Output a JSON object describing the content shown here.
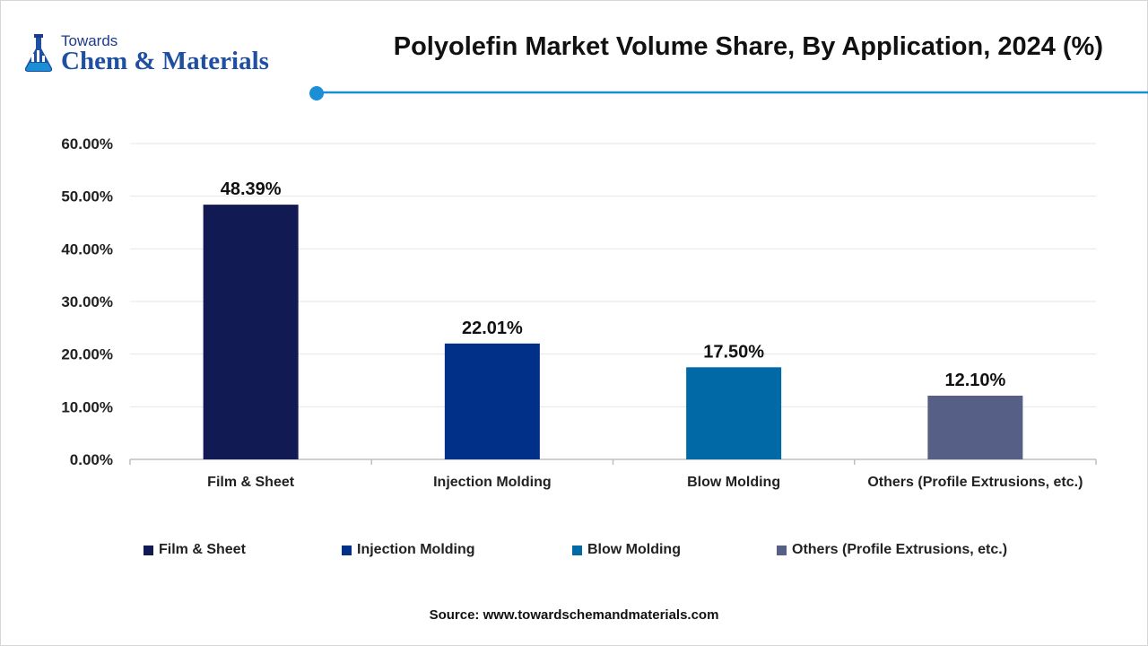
{
  "brand": {
    "line1": "Towards",
    "line2": "Chem & Materials"
  },
  "colors": {
    "accent": "#1a8fd6",
    "title_rule": "#1a8fd6",
    "grid": "#e6e6e6",
    "axis": "#bfbfbf"
  },
  "source": "Source: www.towardschemandmaterials.com",
  "chart_data": {
    "type": "bar",
    "title": "Polyolefin Market Volume Share, By Application, 2024 (%)",
    "xlabel": "",
    "ylabel": "",
    "categories": [
      "Film & Sheet",
      "Injection Molding",
      "Blow Molding",
      "Others (Profile Extrusions, etc.)"
    ],
    "values": [
      48.39,
      22.01,
      17.5,
      12.1
    ],
    "value_labels": [
      "48.39%",
      "22.01%",
      "17.50%",
      "12.10%"
    ],
    "bar_colors": [
      "#111a52",
      "#003087",
      "#0069a6",
      "#565f85"
    ],
    "ylim": [
      0,
      60
    ],
    "yticks": [
      0,
      10,
      20,
      30,
      40,
      50,
      60
    ],
    "ytick_labels": [
      "0.00%",
      "10.00%",
      "20.00%",
      "30.00%",
      "40.00%",
      "50.00%",
      "60.00%"
    ],
    "grid": true,
    "legend": {
      "position": "bottom",
      "entries": [
        "Film & Sheet",
        "Injection Molding",
        "Blow Molding",
        "Others (Profile Extrusions, etc.)"
      ]
    }
  }
}
